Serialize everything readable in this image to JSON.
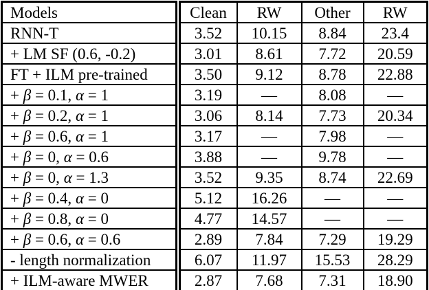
{
  "table": {
    "columns": [
      "Models",
      "Clean",
      "RW",
      "Other",
      "RW"
    ],
    "rows": [
      {
        "model": "RNN-T",
        "values": [
          "3.52",
          "10.15",
          "8.84",
          "23.4"
        ]
      },
      {
        "model": "+ LM SF (0.6, -0.2)",
        "values": [
          "3.01",
          "8.61",
          "7.72",
          "20.59"
        ]
      },
      {
        "model": "FT + ILM pre-trained",
        "values": [
          "3.50",
          "9.12",
          "8.78",
          "22.88"
        ]
      },
      {
        "model": "+ β = 0.1, α = 1",
        "values": [
          "3.19",
          "—",
          "8.08",
          "—"
        ]
      },
      {
        "model": "+ β = 0.2, α = 1",
        "values": [
          "3.06",
          "8.14",
          "7.73",
          "20.34"
        ]
      },
      {
        "model": "+ β = 0.6, α = 1",
        "values": [
          "3.17",
          "—",
          "7.98",
          "—"
        ]
      },
      {
        "model": "+ β = 0, α = 0.6",
        "values": [
          "3.88",
          "—",
          "9.78",
          "—"
        ]
      },
      {
        "model": "+ β = 0, α = 1.3",
        "values": [
          "3.52",
          "9.35",
          "8.74",
          "22.69"
        ]
      },
      {
        "model": "+ β = 0.4, α = 0",
        "values": [
          "5.12",
          "16.26",
          "—",
          "—"
        ]
      },
      {
        "model": "+ β = 0.8, α = 0",
        "values": [
          "4.77",
          "14.57",
          "—",
          "—"
        ]
      },
      {
        "model": "+ β = 0.6, α = 0.6",
        "values": [
          "2.89",
          "7.84",
          "7.29",
          "19.29"
        ]
      },
      {
        "model": "- length normalization",
        "values": [
          "6.07",
          "11.97",
          "15.53",
          "28.29"
        ]
      },
      {
        "model": "+ ILM-aware MWER",
        "values": [
          "2.87",
          "7.68",
          "7.31",
          "18.90"
        ]
      }
    ],
    "missing_value_glyph": "—",
    "colors": {
      "text": "#000000",
      "background": "#ffffff",
      "rule": "#000000"
    }
  }
}
